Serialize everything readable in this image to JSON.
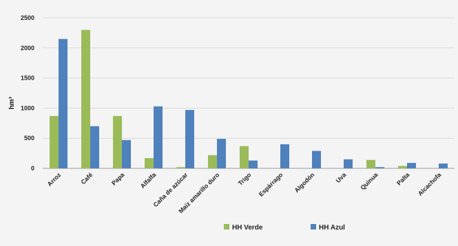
{
  "chart_data": {
    "type": "bar",
    "title": "",
    "xlabel": "",
    "ylabel": "hm³",
    "ylim": [
      0,
      2500
    ],
    "yticks": [
      0,
      500,
      1000,
      1500,
      2000,
      2500
    ],
    "categories": [
      "Arroz",
      "Café",
      "Papa",
      "Alfalfa",
      "Caña de azúcar",
      "Maíz amarillo duro",
      "Trigo",
      "Espárrago",
      "Algodón",
      "Uva",
      "Quinua",
      "Palta",
      "Alcachofa"
    ],
    "series": [
      {
        "name": "HH Verde",
        "color": "#9bbb59",
        "values": [
          870,
          2300,
          870,
          170,
          20,
          220,
          370,
          0,
          0,
          0,
          140,
          40,
          0
        ]
      },
      {
        "name": "HH Azul",
        "color": "#4f81bd",
        "values": [
          2150,
          700,
          470,
          1030,
          970,
          490,
          130,
          400,
          290,
          150,
          20,
          90,
          80
        ]
      }
    ],
    "grid": true,
    "legend_position": "bottom"
  }
}
